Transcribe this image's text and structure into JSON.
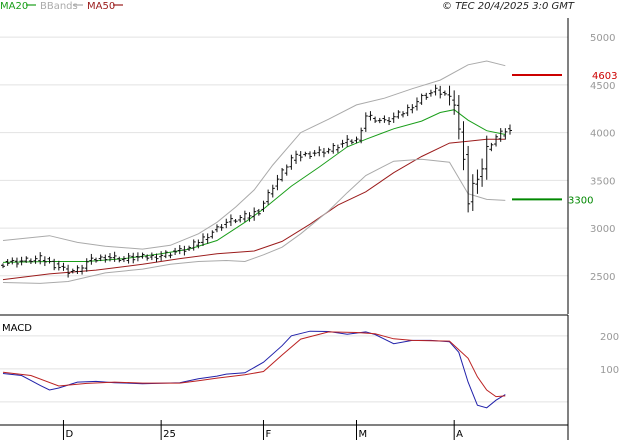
{
  "header": {
    "legend": [
      {
        "label": "MA20",
        "color": "#1a9e1a"
      },
      {
        "label": "BBands",
        "color": "#aaaaaa"
      },
      {
        "label": "MA50",
        "color": "#9b1c1c"
      }
    ],
    "copyright": "© TEC 20/4/2025 3:0 GMT"
  },
  "chart_data": [
    {
      "type": "line",
      "role": "price-panel",
      "ylim": [
        2100,
        5200
      ],
      "yticks": [
        2500,
        3000,
        3500,
        4000,
        4500,
        5000
      ],
      "ytick_labels": [
        "2500",
        "3000",
        "3500",
        "4000",
        "4500",
        "5000"
      ],
      "xticks": [
        {
          "label": "D",
          "i": 13
        },
        {
          "label": "25",
          "i": 34
        },
        {
          "label": "F",
          "i": 56
        },
        {
          "label": "M",
          "i": 76
        },
        {
          "label": "A",
          "i": 97
        }
      ],
      "n": 110,
      "ohlc_anchors": [
        [
          0,
          2630
        ],
        [
          8,
          2680
        ],
        [
          14,
          2550
        ],
        [
          16,
          2560
        ],
        [
          18,
          2640
        ],
        [
          22,
          2700
        ],
        [
          26,
          2680
        ],
        [
          32,
          2700
        ],
        [
          38,
          2760
        ],
        [
          40,
          2790
        ],
        [
          44,
          2930
        ],
        [
          48,
          3060
        ],
        [
          52,
          3120
        ],
        [
          55,
          3180
        ],
        [
          58,
          3440
        ],
        [
          62,
          3730
        ],
        [
          66,
          3780
        ],
        [
          70,
          3820
        ],
        [
          74,
          3900
        ],
        [
          76,
          3920
        ],
        [
          78,
          4180
        ],
        [
          82,
          4110
        ],
        [
          86,
          4210
        ],
        [
          90,
          4370
        ],
        [
          93,
          4440
        ],
        [
          95,
          4400
        ],
        [
          97,
          4300
        ],
        [
          99,
          3750
        ],
        [
          100,
          3260
        ],
        [
          101,
          3450
        ],
        [
          103,
          3620
        ],
        [
          104,
          3830
        ],
        [
          106,
          3950
        ],
        [
          108,
          4020
        ],
        [
          109,
          4010
        ]
      ],
      "series": [
        {
          "name": "MA20",
          "color": "#1a9e1a",
          "points": [
            [
              0,
              2640
            ],
            [
              10,
              2650
            ],
            [
              18,
              2650
            ],
            [
              26,
              2680
            ],
            [
              34,
              2730
            ],
            [
              40,
              2780
            ],
            [
              46,
              2870
            ],
            [
              52,
              3060
            ],
            [
              56,
              3200
            ],
            [
              62,
              3440
            ],
            [
              68,
              3640
            ],
            [
              74,
              3850
            ],
            [
              78,
              3930
            ],
            [
              84,
              4040
            ],
            [
              90,
              4120
            ],
            [
              94,
              4210
            ],
            [
              97,
              4240
            ],
            [
              100,
              4130
            ],
            [
              104,
              4020
            ],
            [
              108,
              3980
            ]
          ]
        },
        {
          "name": "MA50",
          "color": "#9b1c1c",
          "points": [
            [
              0,
              2460
            ],
            [
              10,
              2520
            ],
            [
              20,
              2560
            ],
            [
              30,
              2620
            ],
            [
              38,
              2680
            ],
            [
              46,
              2730
            ],
            [
              54,
              2760
            ],
            [
              60,
              2860
            ],
            [
              66,
              3040
            ],
            [
              72,
              3240
            ],
            [
              78,
              3380
            ],
            [
              84,
              3580
            ],
            [
              90,
              3750
            ],
            [
              96,
              3890
            ],
            [
              100,
              3910
            ],
            [
              104,
              3930
            ],
            [
              108,
              3930
            ]
          ]
        },
        {
          "name": "BB upper",
          "color": "#aaaaaa",
          "points": [
            [
              0,
              2870
            ],
            [
              10,
              2920
            ],
            [
              16,
              2850
            ],
            [
              22,
              2810
            ],
            [
              30,
              2780
            ],
            [
              36,
              2820
            ],
            [
              42,
              2940
            ],
            [
              46,
              3060
            ],
            [
              50,
              3220
            ],
            [
              54,
              3400
            ],
            [
              58,
              3660
            ],
            [
              64,
              4000
            ],
            [
              70,
              4140
            ],
            [
              76,
              4290
            ],
            [
              82,
              4360
            ],
            [
              88,
              4460
            ],
            [
              94,
              4550
            ],
            [
              100,
              4710
            ],
            [
              104,
              4750
            ],
            [
              108,
              4700
            ]
          ]
        },
        {
          "name": "BB lower",
          "color": "#aaaaaa",
          "points": [
            [
              0,
              2430
            ],
            [
              8,
              2420
            ],
            [
              14,
              2440
            ],
            [
              22,
              2530
            ],
            [
              30,
              2570
            ],
            [
              36,
              2620
            ],
            [
              42,
              2650
            ],
            [
              48,
              2660
            ],
            [
              52,
              2650
            ],
            [
              56,
              2720
            ],
            [
              60,
              2800
            ],
            [
              64,
              2940
            ],
            [
              70,
              3180
            ],
            [
              74,
              3370
            ],
            [
              78,
              3550
            ],
            [
              84,
              3700
            ],
            [
              90,
              3720
            ],
            [
              96,
              3690
            ],
            [
              100,
              3360
            ],
            [
              104,
              3300
            ],
            [
              108,
              3290
            ]
          ]
        }
      ],
      "levels": [
        {
          "value": 4603,
          "label": "4603",
          "color": "#cc0000"
        },
        {
          "value": 3300,
          "label": "3300",
          "color": "#008800"
        }
      ]
    },
    {
      "type": "line",
      "role": "macd-panel",
      "title": "MACD",
      "ylim": [
        -70,
        260
      ],
      "yticks": [
        100,
        200
      ],
      "ytick_labels": [
        "100",
        "200"
      ],
      "series": [
        {
          "name": "MACD",
          "color": "#2222aa",
          "points": [
            [
              0,
              86
            ],
            [
              4,
              80
            ],
            [
              8,
              50
            ],
            [
              10,
              36
            ],
            [
              12,
              42
            ],
            [
              16,
              60
            ],
            [
              20,
              62
            ],
            [
              24,
              58
            ],
            [
              30,
              55
            ],
            [
              38,
              58
            ],
            [
              42,
              70
            ],
            [
              46,
              78
            ],
            [
              48,
              84
            ],
            [
              52,
              88
            ],
            [
              56,
              120
            ],
            [
              60,
              170
            ],
            [
              62,
              200
            ],
            [
              66,
              214
            ],
            [
              70,
              213
            ],
            [
              74,
              205
            ],
            [
              78,
              212
            ],
            [
              80,
              204
            ],
            [
              84,
              176
            ],
            [
              88,
              186
            ],
            [
              92,
              186
            ],
            [
              96,
              182
            ],
            [
              98,
              150
            ],
            [
              100,
              60
            ],
            [
              102,
              -10
            ],
            [
              104,
              -18
            ],
            [
              106,
              5
            ],
            [
              108,
              22
            ]
          ]
        },
        {
          "name": "Signal",
          "color": "#bb2222",
          "points": [
            [
              0,
              90
            ],
            [
              6,
              80
            ],
            [
              12,
              48
            ],
            [
              18,
              56
            ],
            [
              24,
              60
            ],
            [
              30,
              57
            ],
            [
              38,
              57
            ],
            [
              42,
              64
            ],
            [
              46,
              72
            ],
            [
              52,
              82
            ],
            [
              56,
              92
            ],
            [
              60,
              142
            ],
            [
              64,
              190
            ],
            [
              70,
              212
            ],
            [
              76,
              210
            ],
            [
              80,
              206
            ],
            [
              84,
              191
            ],
            [
              88,
              186
            ],
            [
              92,
              185
            ],
            [
              96,
              184
            ],
            [
              100,
              132
            ],
            [
              102,
              76
            ],
            [
              104,
              36
            ],
            [
              106,
              16
            ],
            [
              108,
              18
            ]
          ]
        }
      ]
    }
  ]
}
